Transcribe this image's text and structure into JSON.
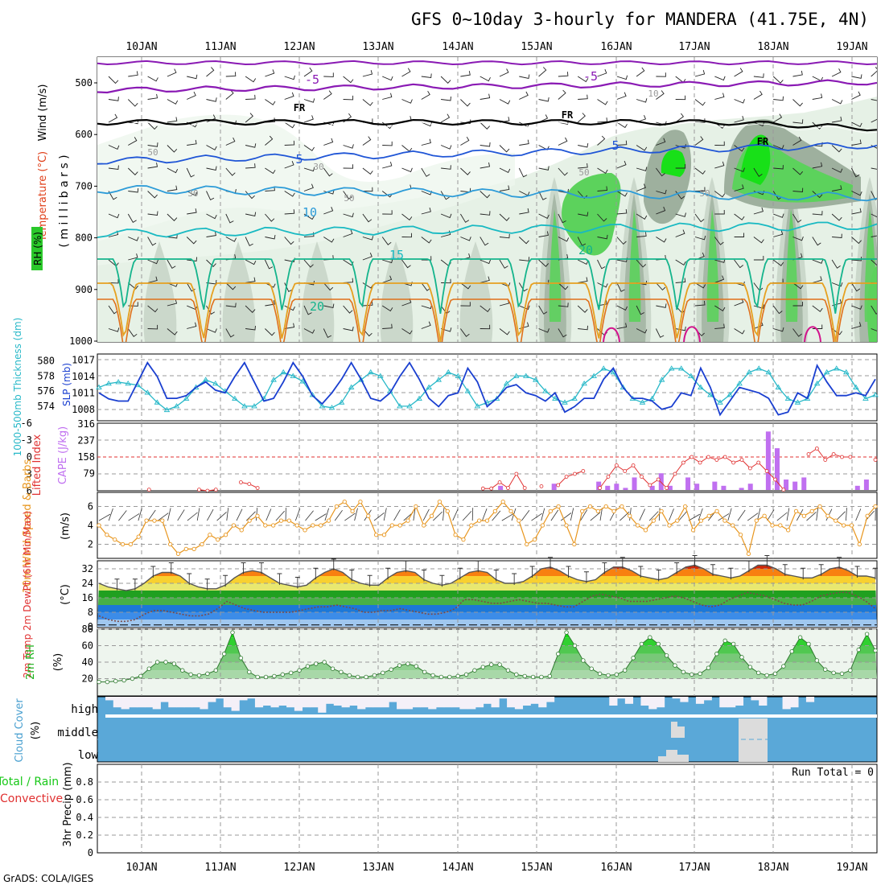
{
  "title": "GFS 0~10day 3-hourly for MANDERA (41.75E, 4N)",
  "footer": "GrADS: COLA/IGES",
  "dates": [
    "10JAN",
    "11JAN",
    "12JAN",
    "13JAN",
    "14JAN",
    "15JAN",
    "16JAN",
    "17JAN",
    "18JAN",
    "19JAN"
  ],
  "colors": {
    "temp_m5": "#8a1ab4",
    "temp_5": "#1f55d6",
    "temp_10": "#2c9bd8",
    "temp_15": "#18b9c2",
    "temp_20": "#14b48c",
    "temp_25": "#e6a020",
    "temp_30": "#e0701a",
    "temp_35": "#d2148c",
    "freezing": "#000000",
    "rh_light": "#e3f0e3",
    "rh_mid": "#c9d6c9",
    "rh_dark": "#9eb09e",
    "rh_green": "#5cd25c",
    "rh_bright": "#18e018",
    "slp": "#1a3fd0",
    "thickness": "#27b8c8",
    "cape": "#c070f0",
    "lifted": "#e03030",
    "wind10": "#e8961e",
    "rh2m": "#18c818",
    "cloud": "#5aa8d8",
    "cloud_gap": "#f4f0f8",
    "lowcloud_gap": "#dcdcdc"
  },
  "panels": {
    "upper": {
      "ylabel_wind": "Wind (m/s)",
      "ylabel_temp": "Temperature (°C)",
      "ylabel_rh": "RH (%)",
      "ylabel_p": "( m i l l i b a r s )",
      "yticks": [
        "500",
        "600",
        "700",
        "800",
        "900",
        "1000"
      ],
      "contour_labels": [
        "-5",
        "-5",
        "FR",
        "FR",
        "FR",
        "5",
        "5",
        "10",
        "15",
        "20",
        "20",
        "10",
        "30",
        "30",
        "50",
        "50",
        "50",
        "50"
      ]
    },
    "slp": {
      "ylabel_left": "1000-500mb Thickness (dm)",
      "ylabel_right": "SLP (mb)",
      "ticks_left": [
        "580",
        "578",
        "576",
        "574"
      ],
      "ticks_right": [
        "1017",
        "1014",
        "1011",
        "1008"
      ]
    },
    "cape": {
      "ylabel_left": "Lifted Index",
      "ylabel_right": "CAPE (J/kg)",
      "ticks_left": [
        "-6",
        "-3",
        "0",
        "3",
        "6"
      ],
      "ticks_right": [
        "316",
        "237",
        "158",
        "79"
      ]
    },
    "wind10": {
      "ylabel": "10m Wind Speed & Barbs",
      "unit": "(m/s)",
      "yticks": [
        "6",
        "4",
        "2"
      ]
    },
    "temp2m": {
      "ylabel": "2m Temp 2m DewPt (6hr Min/Max)",
      "unit": "(°C)",
      "yticks": [
        "32",
        "24",
        "16",
        "8",
        "0"
      ]
    },
    "rh2m": {
      "ylabel": "2m RH",
      "unit": "(%)",
      "yticks": [
        "80",
        "60",
        "40",
        "20"
      ]
    },
    "cloud": {
      "ylabel": "Cloud Cover",
      "unit": "(%)",
      "levels": [
        "high",
        "middle",
        "low"
      ]
    },
    "precip": {
      "ylabel_a": "Total / Rain",
      "ylabel_b": "Convective",
      "ylabel_c": "3hr Precip (mm)",
      "yticks": [
        "0.8",
        "0.6",
        "0.4",
        "0.2",
        "0"
      ],
      "run_total": "Run Total = 0"
    }
  },
  "chart_data": [
    {
      "type": "line",
      "name": "slp_thickness",
      "x_unit": "3-hourly steps from 09JAN 12Z",
      "series": [
        {
          "name": "SLP (mb)",
          "y_range": [
            1006.5,
            1017.5
          ],
          "values": [
            1011.0,
            1009.9,
            1009.5,
            1009.5,
            1013.0,
            1016.5,
            1014.0,
            1010.0,
            1010.0,
            1010.5,
            1012.0,
            1013.0,
            1011.5,
            1011.0,
            1014.0,
            1016.5,
            1013.0,
            1009.5,
            1010.0,
            1013.0,
            1016.5,
            1014.0,
            1010.5,
            1009.0,
            1011.0,
            1013.5,
            1016.5,
            1013.5,
            1010.0,
            1009.5,
            1011.0,
            1014.0,
            1016.5,
            1013.5,
            1010.0,
            1008.5,
            1010.5,
            1011.0,
            1015.5,
            1013.0,
            1008.5,
            1010.0,
            1012.0,
            1012.5,
            1011.0,
            1010.5,
            1009.5,
            1011.0,
            1007.5,
            1008.5,
            1010.0,
            1010.0,
            1013.5,
            1015.5,
            1012.0,
            1010.0,
            1010.0,
            1009.5,
            1008.0,
            1008.5,
            1011.0,
            1010.5,
            1015.5,
            1012.0,
            1007.0,
            1009.5,
            1012.0,
            1011.5,
            1011.0,
            1010.0,
            1007.0,
            1007.5,
            1011.0,
            1010.0,
            1016.0,
            1013.0,
            1010.5,
            1010.5,
            1011.0,
            1010.5,
            1013.5
          ]
        },
        {
          "name": "1000-500mb Thickness (dm)",
          "y_range": [
            572.5,
            580.5
          ],
          "values": [
            576.5,
            577.0,
            577.2,
            577.0,
            576.8,
            575.8,
            574.5,
            573.5,
            574.0,
            575.0,
            576.5,
            577.5,
            577.0,
            576.0,
            575.0,
            574.0,
            574.0,
            575.0,
            577.5,
            578.5,
            578.0,
            577.3,
            575.5,
            574.0,
            573.8,
            574.5,
            576.5,
            577.5,
            578.5,
            578.0,
            576.0,
            574.0,
            574.0,
            575.0,
            576.5,
            577.5,
            578.5,
            578.0,
            576.0,
            574.0,
            574.5,
            575.0,
            577.0,
            578.0,
            578.0,
            577.5,
            576.0,
            575.0,
            574.5,
            575.0,
            577.0,
            578.0,
            579.0,
            578.5,
            576.5,
            575.0,
            574.5,
            575.0,
            577.5,
            579.0,
            579.0,
            578.0,
            576.5,
            575.5,
            574.5,
            575.5,
            577.0,
            578.5,
            579.0,
            578.5,
            576.5,
            575.0,
            574.5,
            575.0,
            577.0,
            578.5,
            579.0,
            578.5,
            576.5,
            575.0,
            575.5
          ]
        }
      ]
    },
    {
      "type": "bar",
      "name": "cape_lifted",
      "series": [
        {
          "name": "CAPE (J/kg)",
          "y_range": [
            0,
            316
          ],
          "values": [
            0,
            0,
            0,
            0,
            0,
            0,
            0,
            0,
            0,
            0,
            0,
            0,
            0,
            0,
            0,
            0,
            0,
            0,
            0,
            0,
            0,
            0,
            0,
            0,
            0,
            0,
            0,
            0,
            0,
            0,
            0,
            0,
            0,
            0,
            0,
            0,
            0,
            0,
            0,
            0,
            0,
            0,
            0,
            0,
            0,
            20,
            0,
            0,
            0,
            0,
            0,
            30,
            0,
            0,
            0,
            0,
            40,
            20,
            30,
            10,
            60,
            0,
            20,
            80,
            20,
            0,
            60,
            30,
            0,
            40,
            20,
            0,
            10,
            30,
            0,
            280,
            200,
            50,
            40,
            60,
            0,
            0,
            0,
            0,
            0,
            20,
            50,
            0
          ]
        },
        {
          "name": "Lifted Index",
          "y_range": [
            6,
            -6
          ],
          "values": [
            null,
            null,
            null,
            null,
            null,
            null,
            5.8,
            null,
            null,
            null,
            null,
            null,
            5.8,
            6,
            5.8,
            null,
            null,
            4.5,
            4.8,
            5.5,
            null,
            null,
            null,
            null,
            null,
            null,
            null,
            null,
            null,
            null,
            null,
            null,
            null,
            null,
            null,
            null,
            null,
            null,
            null,
            null,
            null,
            null,
            null,
            null,
            null,
            null,
            5.6,
            5.6,
            4.5,
            5.5,
            3.0,
            5.5,
            null,
            5.2,
            null,
            5.0,
            3.5,
            3.0,
            2.5,
            null,
            5.5,
            3.5,
            1.5,
            2.5,
            1.5,
            3.5,
            5.0,
            4.0,
            5.5,
            3.0,
            1.0,
            0.0,
            1.0,
            0.0,
            0.5,
            0.0,
            1.0,
            0.5,
            2.0,
            1.0,
            2.5,
            4.0,
            5.8,
            null,
            null,
            -0.5,
            -1.5,
            0.5,
            -0.5,
            0,
            0.0,
            null,
            null,
            0.5
          ]
        }
      ]
    },
    {
      "type": "line",
      "name": "wind10m",
      "y_range": [
        0.6,
        7.4
      ],
      "series": [
        {
          "name": "10m Wind Speed (m/s)",
          "values": [
            4.0,
            3.0,
            2.5,
            2.0,
            2.0,
            2.8,
            4.5,
            4.5,
            4.5,
            2.0,
            1.0,
            1.5,
            1.5,
            2.0,
            3.0,
            2.5,
            3.0,
            4.0,
            3.5,
            4.5,
            5.0,
            4.0,
            4.0,
            4.5,
            4.5,
            4.0,
            3.5,
            4.0,
            4.0,
            4.5,
            6.0,
            6.5,
            5.5,
            6.5,
            5.0,
            3.0,
            3.0,
            4.0,
            4.0,
            4.5,
            6.0,
            4.0,
            5.0,
            6.5,
            5.5,
            3.0,
            2.5,
            4.0,
            4.5,
            4.5,
            5.5,
            6.5,
            5.5,
            4.5,
            2.0,
            2.5,
            4.0,
            5.5,
            6.0,
            4.0,
            2.0,
            5.5,
            6.0,
            5.5,
            6.0,
            5.5,
            6.0,
            5.0,
            4.0,
            3.5,
            4.5,
            5.5,
            4.0,
            4.5,
            6.0,
            3.5,
            4.5,
            5.0,
            5.5,
            4.5,
            4.0,
            3.0,
            1.0,
            4.5,
            5.0,
            4.0,
            4.0,
            3.5,
            5.5,
            5.0,
            5.5,
            6.0,
            5.0,
            4.5,
            4.0,
            4.0,
            2.0,
            5.0,
            6.0
          ]
        }
      ]
    },
    {
      "type": "line",
      "name": "temp2m",
      "y_range": [
        0,
        36
      ],
      "series": [
        {
          "name": "2m Temp (°C)",
          "values": [
            24,
            22,
            21,
            20,
            21,
            24,
            28,
            30,
            30,
            28,
            24,
            22,
            21,
            21,
            23,
            27,
            30,
            31,
            30,
            27,
            24,
            23,
            22,
            23,
            27,
            30,
            32,
            30,
            26,
            24,
            23,
            23,
            27,
            30,
            31,
            30,
            26,
            24,
            23,
            24,
            27,
            30,
            31,
            30,
            26,
            24,
            24,
            25,
            28,
            32,
            33,
            31,
            28,
            26,
            25,
            26,
            30,
            33,
            33,
            31,
            28,
            27,
            26,
            27,
            30,
            33,
            34,
            32,
            29,
            28,
            27,
            28,
            31,
            34,
            34,
            32,
            29,
            28,
            27,
            27,
            29,
            32,
            33,
            31,
            28,
            28,
            27
          ]
        },
        {
          "name": "2m DewPt (°C)",
          "values": [
            6,
            4,
            3,
            3,
            4,
            7,
            9,
            9,
            8,
            7,
            6,
            6,
            7,
            10,
            14,
            12,
            10,
            9,
            8,
            8,
            8,
            8,
            9,
            10,
            11,
            11,
            12,
            11,
            10,
            8,
            8,
            9,
            9,
            10,
            9,
            8,
            7,
            7,
            8,
            10,
            15,
            15,
            14,
            13,
            13,
            14,
            15,
            14,
            13,
            13,
            12,
            11,
            11,
            14,
            17,
            18,
            17,
            16,
            14,
            14,
            14,
            15,
            16,
            17,
            16,
            14,
            12,
            11,
            12,
            15,
            17,
            19,
            18,
            17,
            15,
            13,
            12,
            12,
            14,
            17,
            18,
            19,
            19,
            17,
            14,
            10
          ]
        }
      ]
    },
    {
      "type": "area",
      "name": "rh2m",
      "y_range": [
        0,
        80
      ],
      "series": [
        {
          "name": "2m RH (%)",
          "values": [
            16,
            16,
            17,
            18,
            20,
            23,
            32,
            40,
            40,
            38,
            30,
            25,
            24,
            26,
            30,
            50,
            76,
            45,
            28,
            22,
            22,
            23,
            25,
            27,
            30,
            35,
            38,
            40,
            32,
            28,
            24,
            22,
            22,
            24,
            27,
            31,
            36,
            38,
            35,
            28,
            24,
            22,
            22,
            23,
            25,
            30,
            34,
            37,
            37,
            30,
            25,
            23,
            22,
            22,
            23,
            50,
            76,
            60,
            42,
            32,
            26,
            24,
            25,
            30,
            45,
            62,
            70,
            62,
            48,
            36,
            28,
            25,
            26,
            33,
            50,
            66,
            62,
            46,
            34,
            27,
            24,
            26,
            35,
            53,
            70,
            62,
            42,
            31,
            27,
            26,
            30,
            55,
            74,
            54
          ]
        }
      ]
    },
    {
      "type": "bar",
      "name": "cloud_high_gap",
      "y_range": [
        0,
        1
      ],
      "series": [
        {
          "name": "high cloud clear fraction",
          "values": [
            0.2,
            0.6,
            0.7,
            0.6,
            0.6,
            0.6,
            0.7,
            0.3,
            0.6,
            0.6,
            0.6,
            0.6,
            0.7,
            0.3,
            0.1,
            0.6,
            0.8,
            0.2,
            0.1,
            0.6,
            0.5,
            0.6,
            0.5,
            0.6,
            0.8,
            0.6,
            0.6,
            0.9,
            0.4,
            0.5,
            0.6,
            0.5,
            0.7,
            0.6,
            0.6,
            0.6,
            0.3,
            0.7,
            0.7,
            0.6,
            0.6,
            0.7,
            0.6,
            0.6,
            0.6,
            0.7,
            0.7,
            0.6,
            0.4,
            0.6,
            0.1,
            0.6,
            0.7,
            0.5,
            0.4,
            0.6,
            0.3,
            0.0,
            0.0,
            0.0,
            0.0,
            0.0,
            0.0,
            0.0,
            0.5,
            0.1,
            0.4,
            0.0,
            0.5,
            0.7,
            0.6,
            0.0,
            0.1,
            0.3,
            0.0,
            0.4,
            0.2,
            0.0,
            0.6,
            0.6,
            0.5,
            0.0,
            0.2,
            0.5,
            0.0,
            0.0,
            0.7,
            0.6,
            0.0,
            0.3,
            0.0,
            0.0,
            0.0,
            0.0,
            0.0,
            0.0,
            0.0,
            0.0
          ]
        }
      ]
    }
  ]
}
